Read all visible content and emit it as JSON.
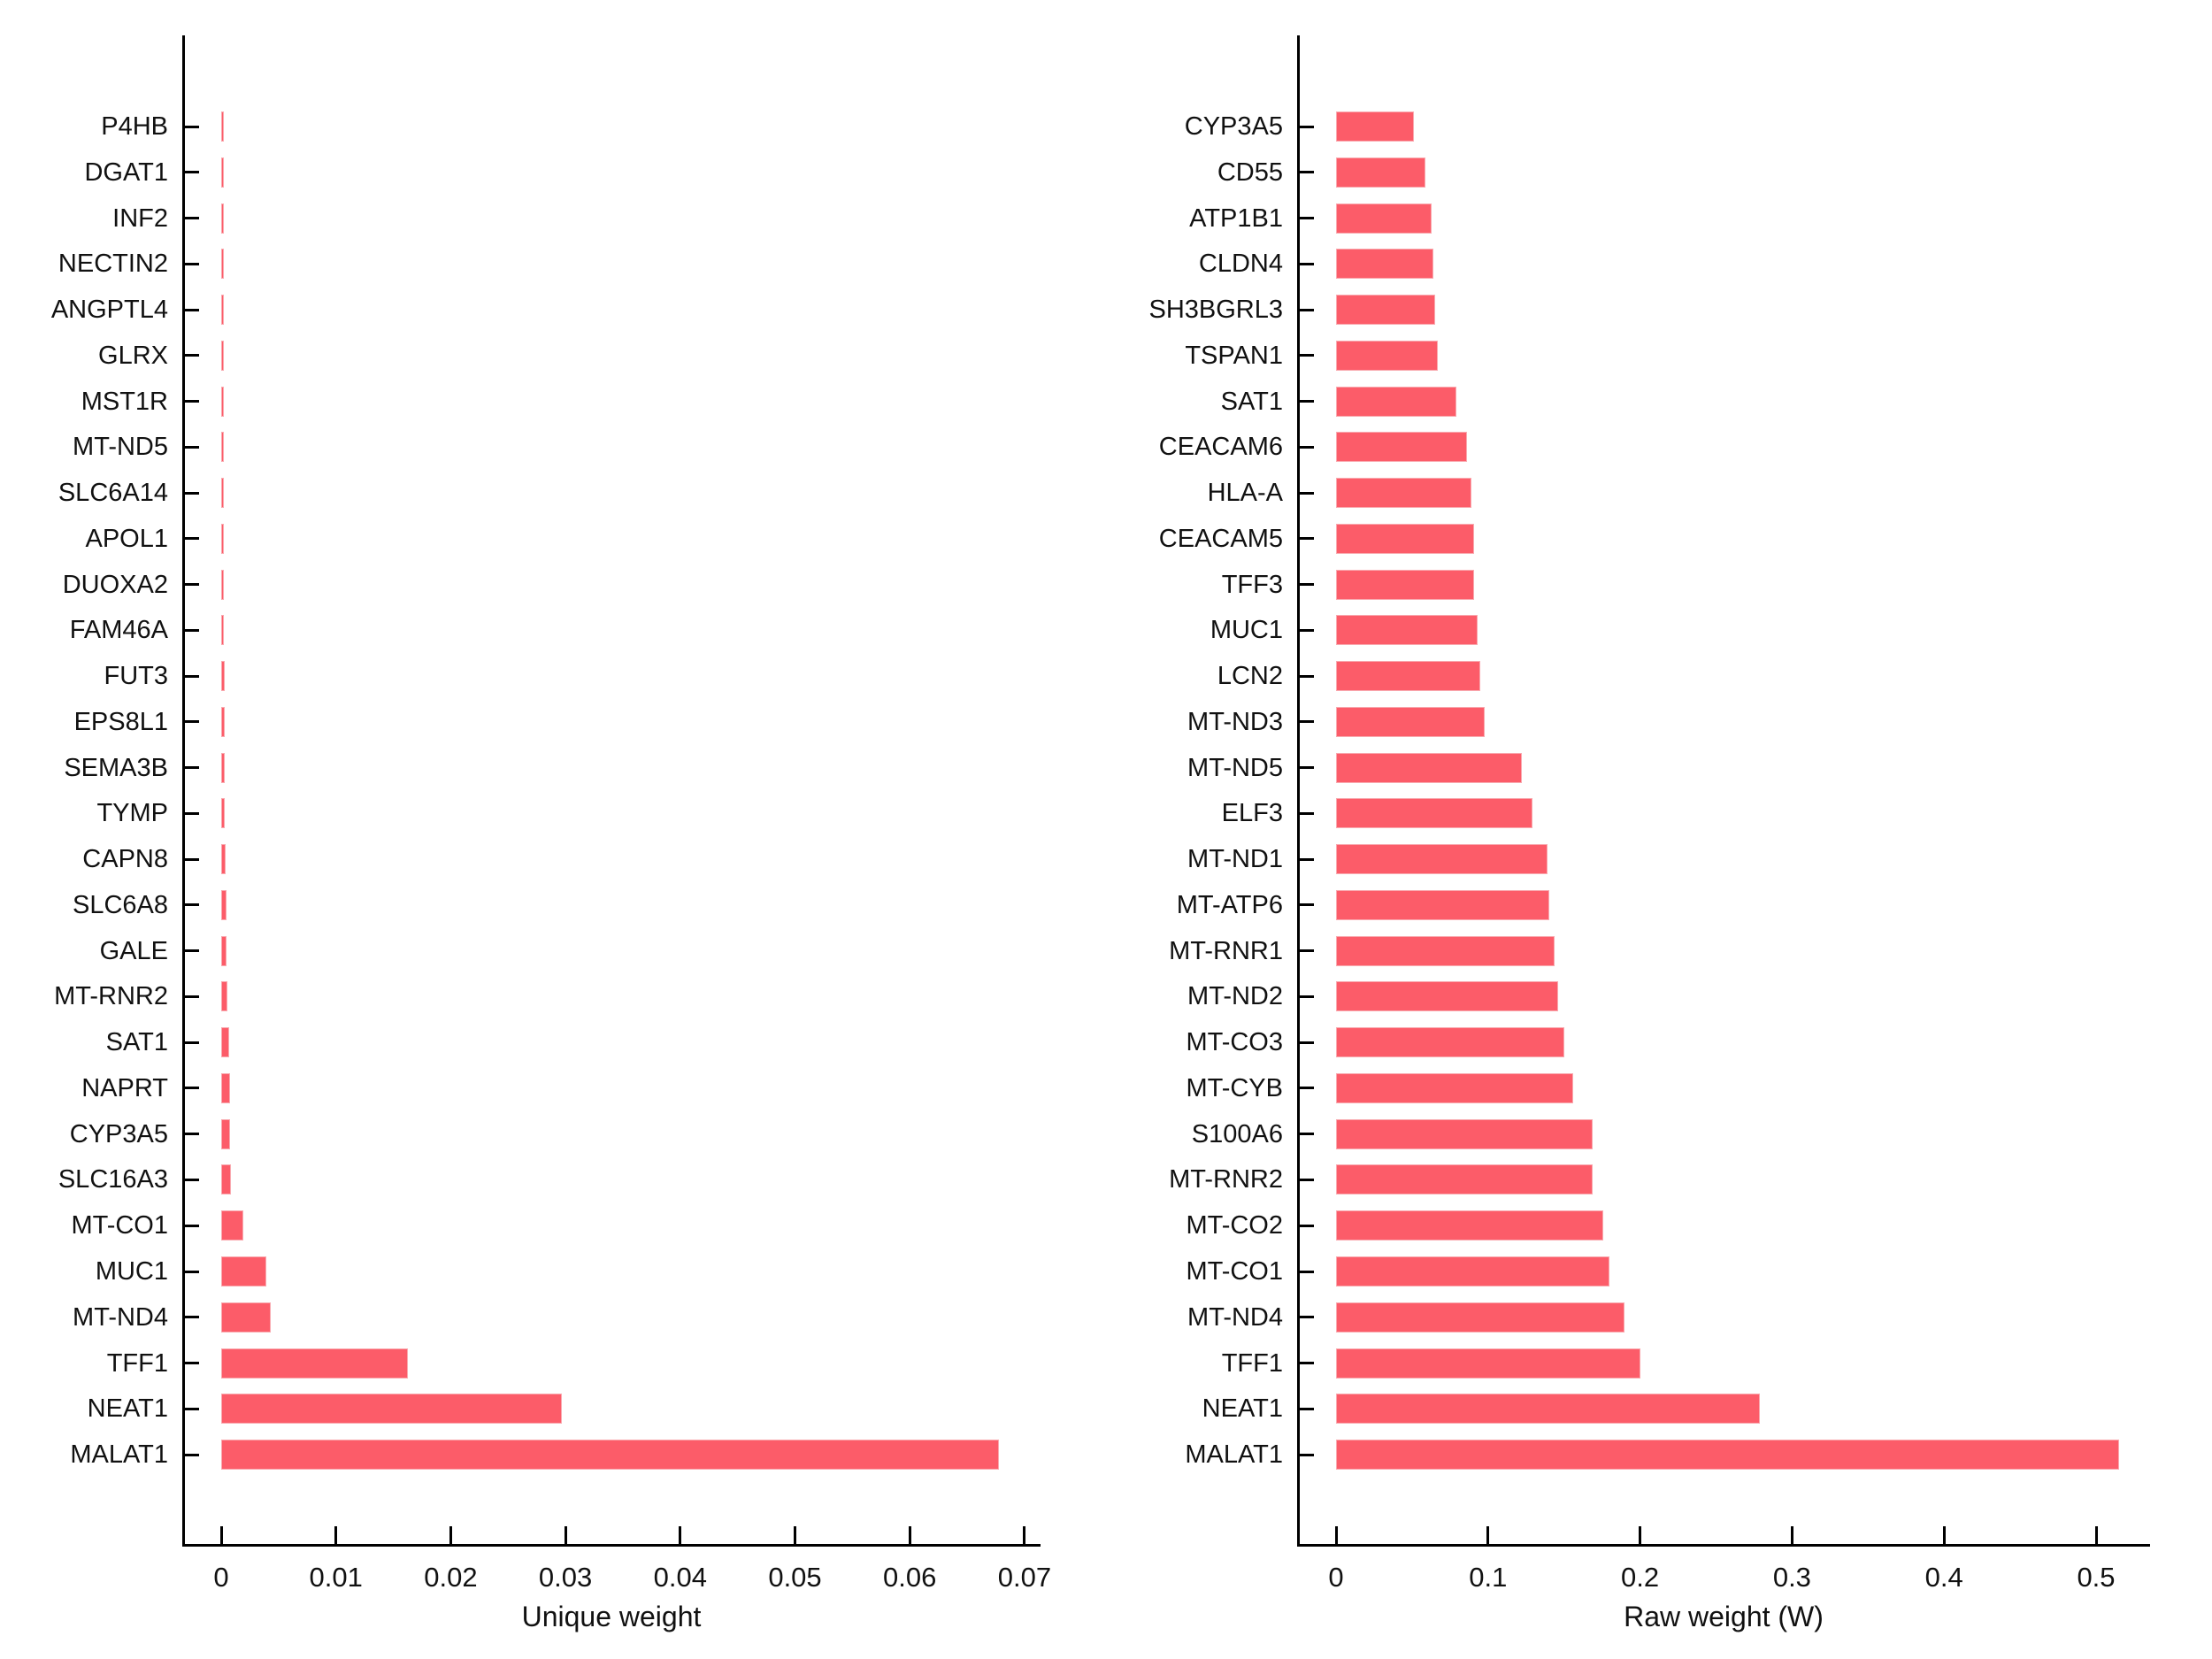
{
  "figure": {
    "background": "#ffffff",
    "title": ""
  },
  "colors": {
    "bar_fill": "#FC5C69",
    "bar_edge": "#F9A9AF",
    "axis": "#000000",
    "text": "#111111"
  },
  "chart_data": [
    {
      "type": "bar",
      "orientation": "horizontal",
      "title": "",
      "xlabel": "Unique weight",
      "ylabel": "",
      "grid": false,
      "legend": false,
      "xlim": [
        -0.0034,
        0.0712
      ],
      "xtick_values": [
        0,
        0.01,
        0.02,
        0.03,
        0.04,
        0.05,
        0.06,
        0.07
      ],
      "xtick_labels": [
        "0",
        "0.01",
        "0.02",
        "0.03",
        "0.04",
        "0.05",
        "0.06",
        "0.07"
      ],
      "categories": [
        "P4HB",
        "DGAT1",
        "INF2",
        "NECTIN2",
        "ANGPTL4",
        "GLRX",
        "MST1R",
        "MT-ND5",
        "SLC6A14",
        "APOL1",
        "DUOXA2",
        "FAM46A",
        "FUT3",
        "EPS8L1",
        "SEMA3B",
        "TYMP",
        "CAPN8",
        "SLC6A8",
        "GALE",
        "MT-RNR2",
        "SAT1",
        "NAPRT",
        "CYP3A5",
        "SLC16A3",
        "MT-CO1",
        "MUC1",
        "MT-ND4",
        "TFF1",
        "NEAT1",
        "MALAT1"
      ],
      "values": [
        0.0001,
        0.00011,
        0.00012,
        0.00013,
        0.00013,
        0.00014,
        0.00014,
        0.00015,
        0.00015,
        0.00016,
        0.0002,
        0.00023,
        0.00028,
        0.0003,
        0.0003,
        0.00033,
        0.0004,
        0.00044,
        0.0005,
        0.00054,
        0.00067,
        0.00075,
        0.00077,
        0.00085,
        0.0019,
        0.0039,
        0.0043,
        0.0163,
        0.0297,
        0.0678
      ]
    },
    {
      "type": "bar",
      "orientation": "horizontal",
      "title": "",
      "xlabel": "Raw weight (W)",
      "ylabel": "",
      "grid": false,
      "legend": false,
      "xlim": [
        -0.026,
        0.541
      ],
      "xtick_values": [
        0,
        0.1,
        0.2,
        0.3,
        0.4,
        0.5
      ],
      "xtick_labels": [
        "0",
        "0.1",
        "0.2",
        "0.3",
        "0.4",
        "0.5"
      ],
      "categories": [
        "CYP3A5",
        "CD55",
        "ATP1B1",
        "CLDN4",
        "SH3BGRL3",
        "TSPAN1",
        "SAT1",
        "CEACAM6",
        "HLA-A",
        "CEACAM5",
        "TFF3",
        "MUC1",
        "LCN2",
        "MT-ND3",
        "MT-ND5",
        "ELF3",
        "MT-ND1",
        "MT-ATP6",
        "MT-RNR1",
        "MT-ND2",
        "MT-CO3",
        "MT-CYB",
        "S100A6",
        "MT-RNR2",
        "MT-CO2",
        "MT-CO1",
        "MT-ND4",
        "TFF1",
        "NEAT1",
        "MALAT1"
      ],
      "values": [
        0.051,
        0.059,
        0.063,
        0.064,
        0.065,
        0.067,
        0.079,
        0.086,
        0.089,
        0.091,
        0.091,
        0.093,
        0.095,
        0.098,
        0.122,
        0.129,
        0.139,
        0.14,
        0.144,
        0.146,
        0.15,
        0.156,
        0.169,
        0.169,
        0.176,
        0.18,
        0.19,
        0.2,
        0.279,
        0.515
      ]
    }
  ]
}
